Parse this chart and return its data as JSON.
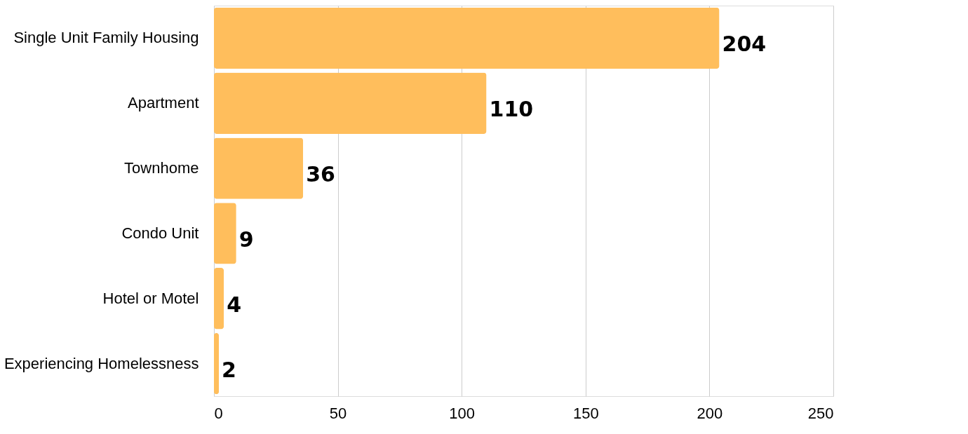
{
  "chart_data": {
    "type": "bar",
    "orientation": "horizontal",
    "categories": [
      "Single Unit Family Housing",
      "Apartment",
      "Townhome",
      "Condo Unit",
      "Hotel or Motel",
      "Experiencing Homelessness"
    ],
    "values": [
      204,
      110,
      36,
      9,
      4,
      2
    ],
    "color": "#ffbe5c",
    "xlim": [
      0,
      250
    ],
    "xticks": [
      0,
      50,
      100,
      150,
      200,
      250
    ],
    "grid": "x",
    "data_labels": true
  }
}
